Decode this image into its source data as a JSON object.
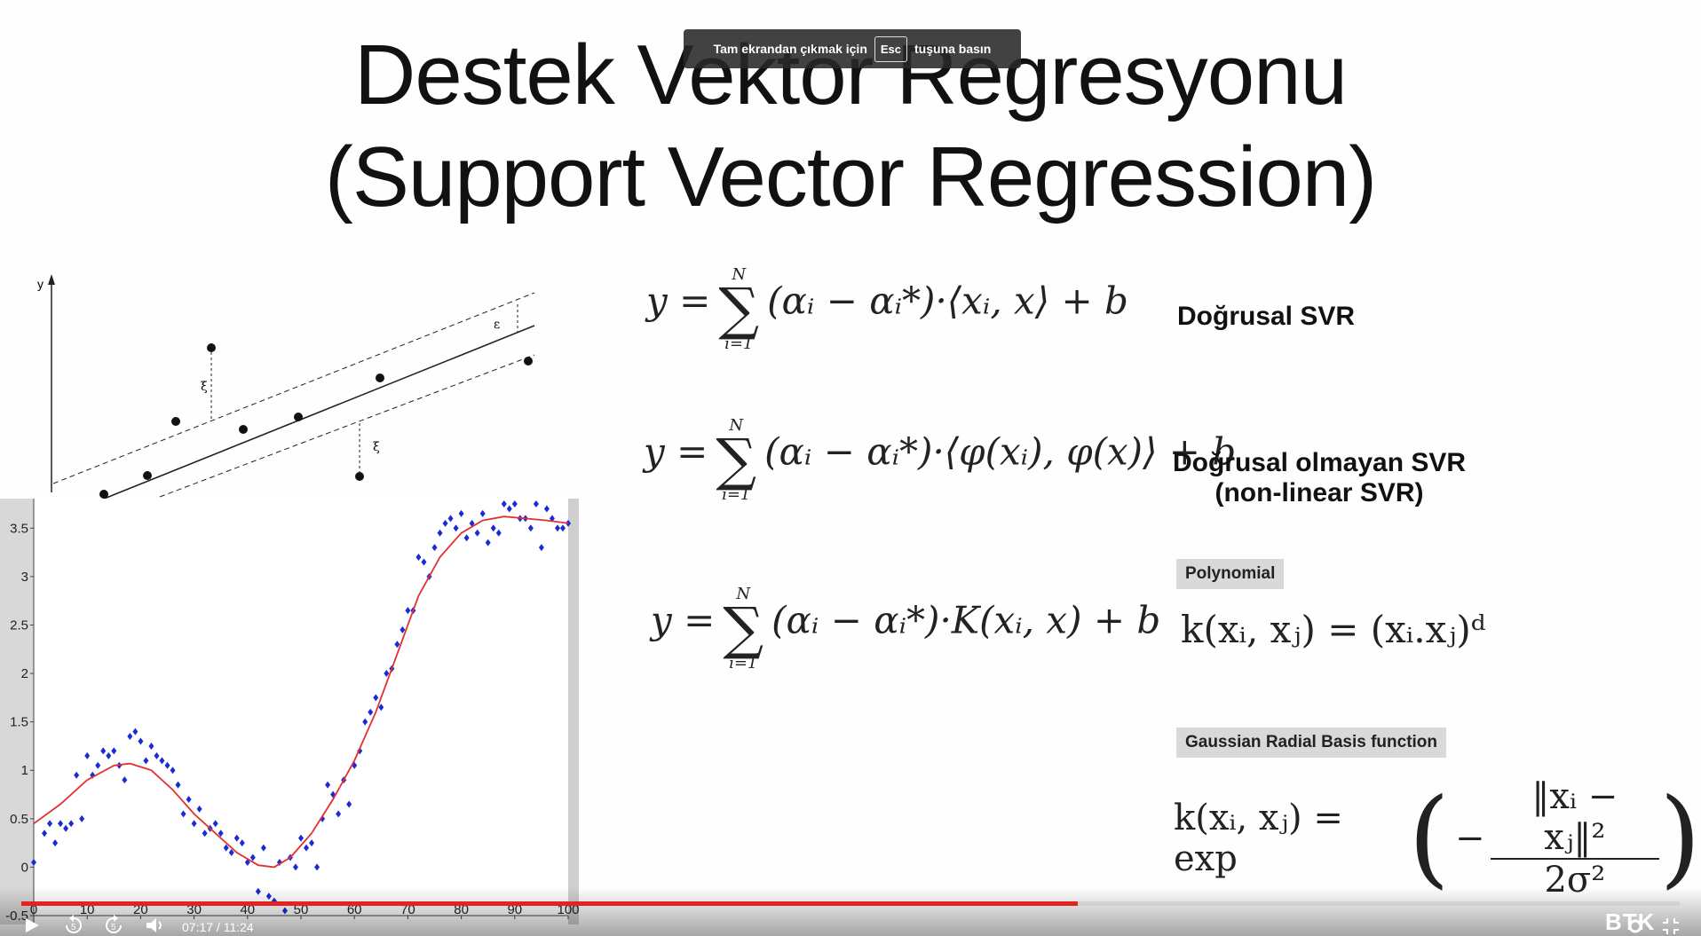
{
  "slide": {
    "title_line1": "Destek Vektör Regresyonu",
    "title_line2": "(Support Vector Regression)",
    "equations": {
      "eq1_rhs": "(αᵢ − αᵢ*)·⟨xᵢ, x⟩ + b",
      "eq2_rhs": "(αᵢ − αᵢ*)·⟨φ(xᵢ), φ(x)⟩ + b",
      "eq3_rhs": "(αᵢ − αᵢ*)·K(xᵢ, x) + b",
      "sum_upper": "N",
      "sum_lower": "i=1",
      "lhs": "y ="
    },
    "labels": {
      "linear": "Doğrusal SVR",
      "nonlinear_1": "Doğrusal olmayan SVR",
      "nonlinear_2": "(non-linear SVR)",
      "polynomial": "Polynomial",
      "poly_formula": "k(xᵢ, xⱼ) = (xᵢ.xⱼ)ᵈ",
      "gaussian": "Gaussian Radial Basis function",
      "rbf_lhs": "k(xᵢ, xⱼ) = exp",
      "rbf_num": "‖xᵢ − xⱼ‖²",
      "rbf_den": "2σ²"
    },
    "diagram": {
      "y_axis_label": "y",
      "epsilon": "ε",
      "xi": "ξ"
    }
  },
  "chart_data": {
    "type": "scatter",
    "xlim": [
      0,
      100
    ],
    "ylim": [
      -0.5,
      3.75
    ],
    "xticks": [
      "0",
      "10",
      "20",
      "30",
      "40",
      "50",
      "60",
      "70",
      "80",
      "90",
      "100"
    ],
    "yticks": [
      "-0.5",
      "0",
      "0.5",
      "1",
      "1.5",
      "2",
      "2.5",
      "3",
      "3.5"
    ],
    "points_color": "#1a2bd6",
    "fit_color": "#e33030",
    "x": [
      0,
      2,
      3,
      4,
      5,
      6,
      7,
      8,
      9,
      10,
      11,
      12,
      13,
      14,
      15,
      16,
      17,
      18,
      19,
      20,
      21,
      22,
      23,
      24,
      25,
      26,
      27,
      28,
      29,
      30,
      31,
      32,
      33,
      34,
      35,
      36,
      37,
      38,
      39,
      40,
      41,
      42,
      43,
      44,
      45,
      46,
      47,
      48,
      49,
      50,
      51,
      52,
      53,
      54,
      55,
      56,
      57,
      58,
      59,
      60,
      61,
      62,
      63,
      64,
      65,
      66,
      67,
      68,
      69,
      70,
      71,
      72,
      73,
      74,
      75,
      76,
      77,
      78,
      79,
      80,
      81,
      82,
      83,
      84,
      85,
      86,
      87,
      88,
      89,
      90,
      91,
      92,
      93,
      94,
      95,
      96,
      97,
      98,
      99,
      100
    ],
    "y": [
      0.05,
      0.35,
      0.45,
      0.25,
      0.45,
      0.4,
      0.45,
      0.95,
      0.5,
      1.15,
      0.95,
      1.05,
      1.2,
      1.15,
      1.2,
      1.05,
      0.9,
      1.35,
      1.4,
      1.3,
      1.1,
      1.25,
      1.15,
      1.1,
      1.05,
      1.0,
      0.85,
      0.55,
      0.7,
      0.45,
      0.6,
      0.35,
      0.4,
      0.45,
      0.35,
      0.2,
      0.15,
      0.3,
      0.25,
      0.05,
      0.1,
      -0.25,
      0.2,
      -0.3,
      -0.35,
      0.05,
      -0.45,
      0.1,
      0.0,
      0.3,
      0.2,
      0.25,
      0.0,
      0.5,
      0.85,
      0.75,
      0.55,
      0.9,
      0.65,
      1.05,
      1.2,
      1.5,
      1.6,
      1.75,
      1.65,
      2.0,
      2.05,
      2.3,
      2.45,
      2.65,
      2.65,
      3.2,
      3.15,
      3.0,
      3.3,
      3.45,
      3.55,
      3.6,
      3.5,
      3.65,
      3.4,
      3.55,
      3.45,
      3.65,
      3.35,
      3.5,
      3.45,
      3.75,
      3.7,
      3.75,
      3.6,
      3.6,
      3.5,
      3.75,
      3.3,
      3.7,
      3.6,
      3.5,
      3.5,
      3.55
    ],
    "fit_x": [
      0,
      5,
      10,
      15,
      18,
      22,
      26,
      30,
      34,
      38,
      42,
      45,
      48,
      52,
      56,
      60,
      64,
      68,
      72,
      76,
      80,
      84,
      88,
      92,
      96,
      100
    ],
    "fit_y": [
      0.45,
      0.65,
      0.9,
      1.05,
      1.07,
      1.0,
      0.8,
      0.55,
      0.35,
      0.15,
      0.02,
      0.0,
      0.1,
      0.35,
      0.7,
      1.1,
      1.6,
      2.2,
      2.8,
      3.2,
      3.45,
      3.58,
      3.62,
      3.6,
      3.58,
      3.55
    ]
  },
  "player": {
    "toast_text_1": "Tam ekrandan çıkmak için",
    "toast_key": "Esc",
    "toast_text_2": "tuşuna basın",
    "time": "07:17 / 11:24",
    "progress": 0.637,
    "brand": "BTK",
    "rewind_label": "5",
    "forward_label": "5"
  }
}
